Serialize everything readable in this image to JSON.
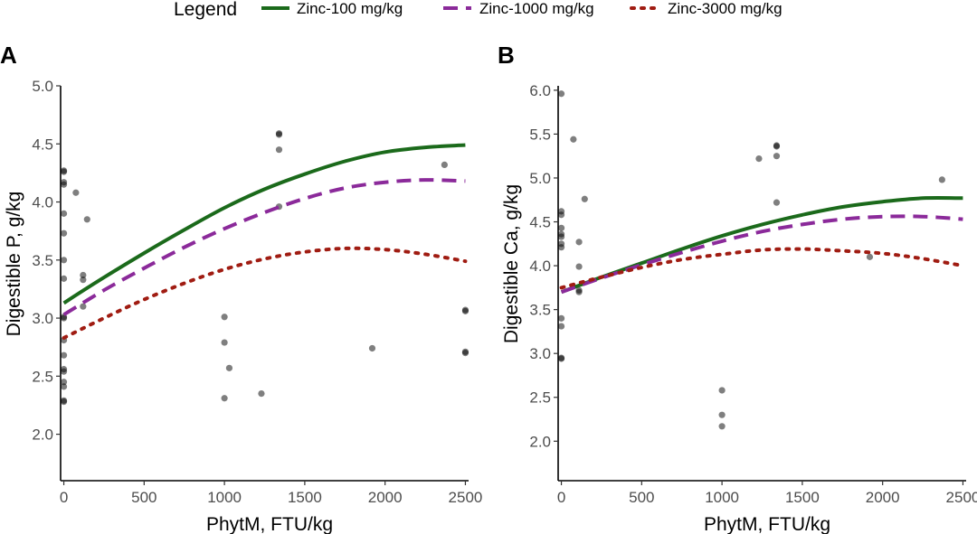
{
  "legend": {
    "title": "Legend",
    "items": [
      {
        "label": "Zinc-100 mg/kg",
        "color": "#1b6a1b",
        "dash": "solid"
      },
      {
        "label": "Zinc-1000 mg/kg",
        "color": "#8b2a9a",
        "dash": "dashed"
      },
      {
        "label": "Zinc-3000 mg/kg",
        "color": "#a01c12",
        "dash": "dotted"
      }
    ],
    "position": "top"
  },
  "chart_data": [
    {
      "panel": "A",
      "type": "scatter",
      "xlabel": "PhytM, FTU/kg",
      "ylabel": "Digestible P, g/kg",
      "xlim": [
        -20,
        2520
      ],
      "ylim": [
        1.6,
        5.0
      ],
      "xticks": [
        0,
        500,
        1000,
        1500,
        2000,
        2500
      ],
      "yticks": [
        2.0,
        2.5,
        3.0,
        3.5,
        4.0,
        4.5,
        5.0
      ],
      "ytick_labels": [
        "2.0",
        "2.5",
        "3.0",
        "3.5",
        "4.0",
        "4.5",
        "5.0"
      ],
      "grid": false,
      "points": [
        [
          0,
          4.27
        ],
        [
          0,
          4.26
        ],
        [
          0,
          4.17
        ],
        [
          0,
          4.15
        ],
        [
          0,
          3.9
        ],
        [
          0,
          3.73
        ],
        [
          0,
          3.5
        ],
        [
          0,
          3.34
        ],
        [
          0,
          3.01
        ],
        [
          0,
          3.0
        ],
        [
          0,
          2.81
        ],
        [
          0,
          2.68
        ],
        [
          0,
          2.56
        ],
        [
          0,
          2.54
        ],
        [
          0,
          2.45
        ],
        [
          0,
          2.41
        ],
        [
          0,
          2.29
        ],
        [
          0,
          2.28
        ],
        [
          75,
          4.08
        ],
        [
          120,
          3.37
        ],
        [
          120,
          3.33
        ],
        [
          120,
          3.1
        ],
        [
          145,
          3.85
        ],
        [
          1000,
          3.01
        ],
        [
          1000,
          2.79
        ],
        [
          1000,
          2.31
        ],
        [
          1030,
          2.57
        ],
        [
          1230,
          2.35
        ],
        [
          1340,
          4.59
        ],
        [
          1340,
          4.58
        ],
        [
          1340,
          4.45
        ],
        [
          1340,
          3.96
        ],
        [
          1920,
          2.74
        ],
        [
          2370,
          4.32
        ],
        [
          2500,
          3.07
        ],
        [
          2500,
          3.06
        ],
        [
          2500,
          2.71
        ],
        [
          2500,
          2.7
        ]
      ],
      "series": [
        {
          "name": "Zinc-100 mg/kg",
          "x": [
            0,
            250,
            500,
            750,
            1000,
            1250,
            1500,
            1750,
            2000,
            2250,
            2500
          ],
          "values": [
            3.13,
            3.35,
            3.56,
            3.76,
            3.95,
            4.11,
            4.24,
            4.35,
            4.43,
            4.47,
            4.49
          ]
        },
        {
          "name": "Zinc-1000 mg/kg",
          "x": [
            0,
            250,
            500,
            750,
            1000,
            1250,
            1500,
            1750,
            2000,
            2250,
            2500
          ],
          "values": [
            3.03,
            3.24,
            3.43,
            3.61,
            3.77,
            3.91,
            4.03,
            4.12,
            4.17,
            4.19,
            4.18
          ]
        },
        {
          "name": "Zinc-3000 mg/kg",
          "x": [
            0,
            250,
            500,
            750,
            1000,
            1250,
            1500,
            1750,
            2000,
            2250,
            2500
          ],
          "values": [
            2.83,
            3.0,
            3.16,
            3.3,
            3.42,
            3.51,
            3.57,
            3.6,
            3.59,
            3.55,
            3.49
          ]
        }
      ]
    },
    {
      "panel": "B",
      "type": "scatter",
      "xlabel": "PhytM, FTU/kg",
      "ylabel": "Digestible Ca, g/kg",
      "xlim": [
        -20,
        2520
      ],
      "ylim": [
        1.55,
        6.05
      ],
      "xticks": [
        0,
        500,
        1000,
        1500,
        2000,
        2500
      ],
      "yticks": [
        2.0,
        2.5,
        3.0,
        3.5,
        4.0,
        4.5,
        5.0,
        5.5,
        6.0
      ],
      "ytick_labels": [
        "2.0",
        "2.5",
        "3.0",
        "3.5",
        "4.0",
        "4.5",
        "5.0",
        "5.5",
        "6.0"
      ],
      "grid": false,
      "points": [
        [
          0,
          5.96
        ],
        [
          0,
          4.62
        ],
        [
          0,
          4.58
        ],
        [
          0,
          4.43
        ],
        [
          0,
          4.36
        ],
        [
          0,
          4.33
        ],
        [
          0,
          4.25
        ],
        [
          0,
          4.21
        ],
        [
          0,
          3.4
        ],
        [
          0,
          3.31
        ],
        [
          0,
          2.95
        ],
        [
          0,
          2.94
        ],
        [
          75,
          5.44
        ],
        [
          110,
          4.27
        ],
        [
          110,
          3.99
        ],
        [
          110,
          3.72
        ],
        [
          110,
          3.7
        ],
        [
          145,
          4.76
        ],
        [
          1000,
          2.58
        ],
        [
          1000,
          2.3
        ],
        [
          1000,
          2.17
        ],
        [
          1230,
          5.22
        ],
        [
          1340,
          5.37
        ],
        [
          1340,
          5.36
        ],
        [
          1340,
          5.25
        ],
        [
          1340,
          4.72
        ],
        [
          1920,
          4.1
        ],
        [
          2370,
          4.98
        ]
      ],
      "series": [
        {
          "name": "Zinc-100 mg/kg",
          "x": [
            0,
            250,
            500,
            750,
            1000,
            1250,
            1500,
            1750,
            2000,
            2250,
            2500
          ],
          "values": [
            3.7,
            3.87,
            4.03,
            4.19,
            4.34,
            4.47,
            4.58,
            4.67,
            4.73,
            4.77,
            4.77
          ]
        },
        {
          "name": "Zinc-1000 mg/kg",
          "x": [
            0,
            250,
            500,
            750,
            1000,
            1250,
            1500,
            1750,
            2000,
            2250,
            2500
          ],
          "values": [
            3.7,
            3.86,
            4.01,
            4.15,
            4.28,
            4.39,
            4.47,
            4.53,
            4.56,
            4.56,
            4.53
          ]
        },
        {
          "name": "Zinc-3000 mg/kg",
          "x": [
            0,
            250,
            500,
            750,
            1000,
            1250,
            1500,
            1750,
            2000,
            2250,
            2500
          ],
          "values": [
            3.75,
            3.87,
            3.98,
            4.07,
            4.13,
            4.18,
            4.19,
            4.17,
            4.14,
            4.08,
            4.0
          ]
        }
      ]
    }
  ]
}
